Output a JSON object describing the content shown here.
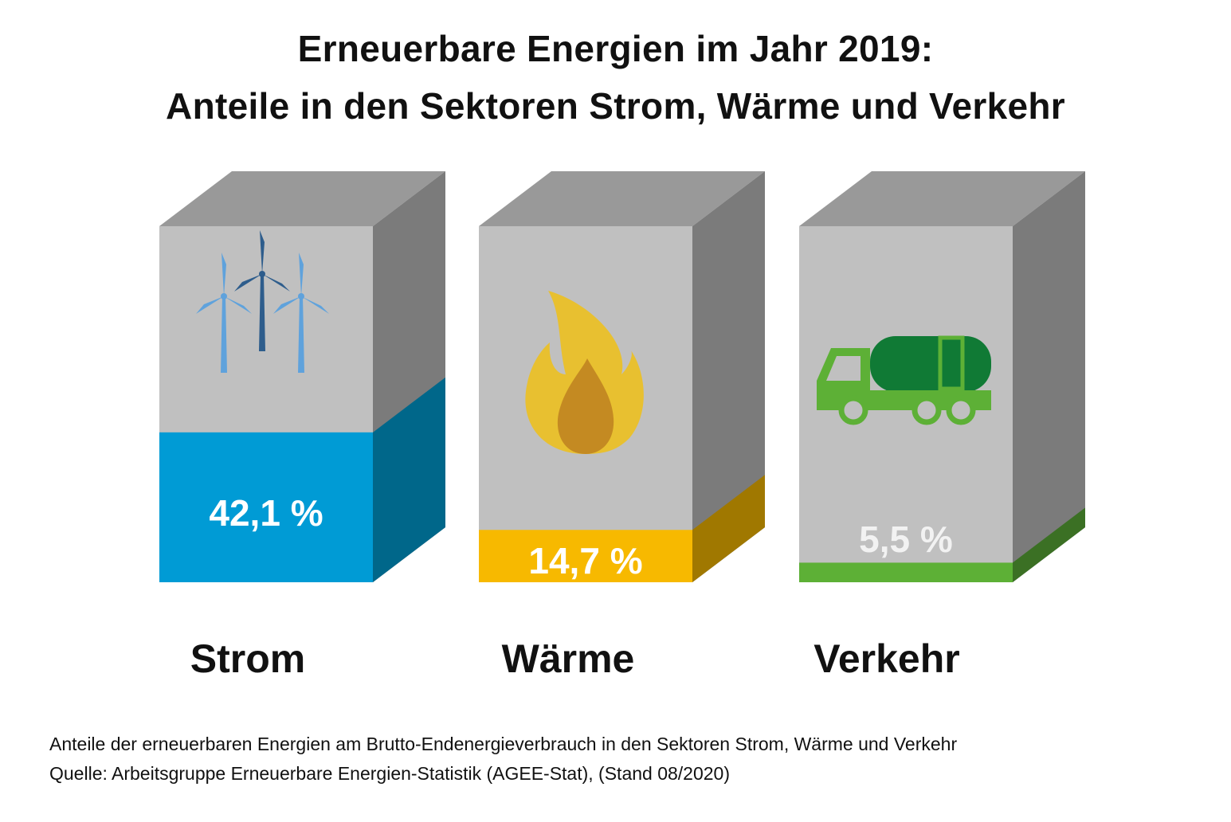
{
  "chart_data": {
    "type": "bar",
    "title": "Erneuerbare Energien im Jahr 2019:",
    "subtitle": "Anteile in den Sektoren Strom, Wärme und Verkehr",
    "categories": [
      "Strom",
      "Wärme",
      "Verkehr"
    ],
    "values": [
      42.1,
      14.7,
      5.5
    ],
    "value_labels": [
      "42,1 %",
      "14,7 %",
      "5,5 %"
    ],
    "unit": "%",
    "ylim": [
      0,
      100
    ],
    "icons": [
      "wind-turbines-icon",
      "flame-icon",
      "tanker-truck-icon"
    ],
    "colors": {
      "front": [
        "#009bd5",
        "#f7b900",
        "#5db036"
      ],
      "side": [
        "#00678a",
        "#a07800",
        "#3b7024"
      ],
      "box_front": "#c0c0c0",
      "box_side": "#7b7b7b",
      "box_top": "#999999"
    },
    "footnote": "Anteile der erneuerbaren Energien am Brutto-Endenergieverbrauch in den Sektoren Strom, Wärme und Verkehr",
    "source": "Quelle: Arbeitsgruppe Erneuerbare Energien-Statistik (AGEE-Stat), (Stand 08/2020)"
  }
}
